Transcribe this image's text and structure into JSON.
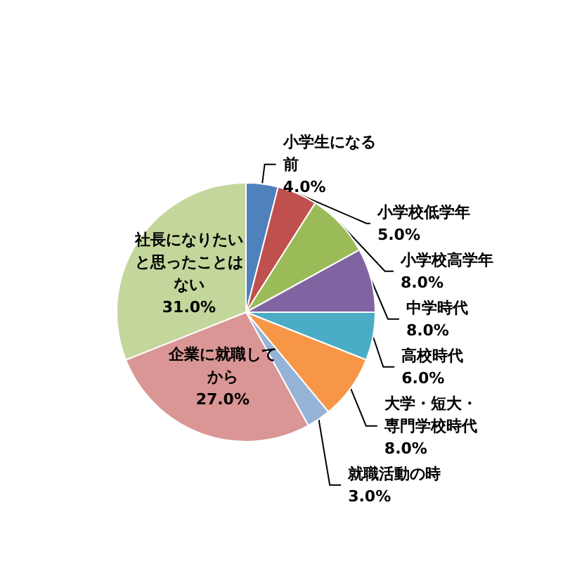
{
  "chart_data": {
    "type": "pie",
    "categories": [
      "小学生になる前",
      "小学校低学年",
      "小学校高学年",
      "中学時代",
      "高校時代",
      "大学・短大・専門学校時代",
      "就職活動の時",
      "企業に就職してから",
      "社長になりたいと思ったことはない"
    ],
    "values": [
      4.0,
      5.0,
      8.0,
      8.0,
      6.0,
      8.0,
      3.0,
      27.0,
      31.0
    ],
    "value_labels": [
      "4.0%",
      "5.0%",
      "8.0%",
      "8.0%",
      "6.0%",
      "8.0%",
      "3.0%",
      "27.0%",
      "31.0%"
    ],
    "colors": [
      "#4f81bd",
      "#c0504d",
      "#9bbb59",
      "#8064a2",
      "#4bacc6",
      "#f79646",
      "#95b3d7",
      "#d99694",
      "#c3d69b"
    ],
    "legend": false
  }
}
